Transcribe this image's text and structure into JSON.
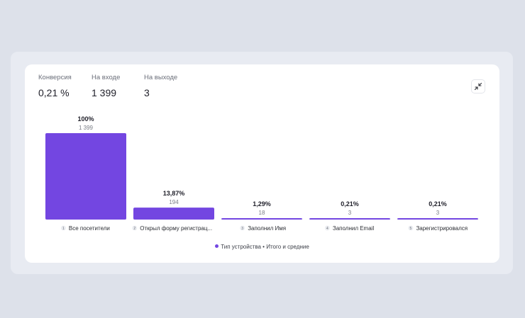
{
  "summary": {
    "conversion": {
      "label": "Конверсия",
      "value": "0,21 %"
    },
    "entry": {
      "label": "На входе",
      "value": "1 399"
    },
    "exit": {
      "label": "На выходе",
      "value": "3"
    }
  },
  "collapse_icon": "collapse-arrows-icon",
  "legend": {
    "label": "Тип устройства • Итого и средние",
    "color": "#7346e1"
  },
  "colors": {
    "bar": "#7346e1",
    "axis": "#e6e7ec"
  },
  "chart_data": {
    "type": "bar",
    "categories": [
      "Все посетители",
      "Открыл форму регистрац...",
      "Заполнил Имя",
      "Заполнил Email",
      "Зарегистрировался"
    ],
    "step_numbers": [
      "1",
      "2",
      "3",
      "4",
      "5"
    ],
    "values": [
      1399,
      194,
      18,
      3,
      3
    ],
    "value_labels": [
      "1 399",
      "194",
      "18",
      "3",
      "3"
    ],
    "percent_labels": [
      "100%",
      "13,87%",
      "1,29%",
      "0,21%",
      "0,21%"
    ],
    "series": [
      {
        "name": "Тип устройства • Итого и средние",
        "values": [
          1399,
          194,
          18,
          3,
          3
        ]
      }
    ],
    "ylim": [
      0,
      1399
    ],
    "grid": false,
    "legend_position": "bottom"
  }
}
